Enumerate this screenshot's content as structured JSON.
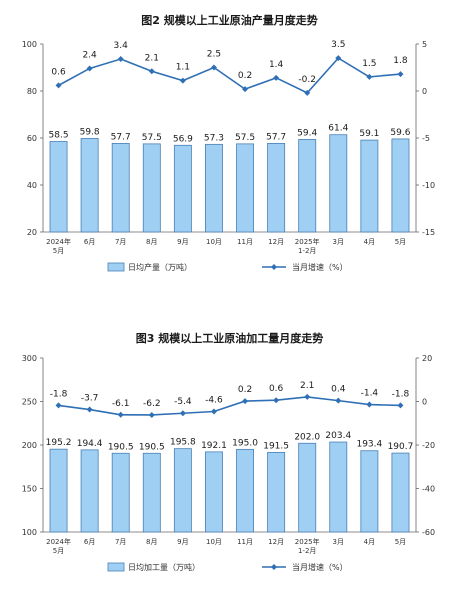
{
  "chart_data": [
    {
      "type": "bar",
      "title": "图2  规模以上工业原油产量月度走势",
      "categories": [
        "2024年\n5月",
        "6月",
        "7月",
        "8月",
        "9月",
        "10月",
        "11月",
        "12月",
        "2025年\n1-2月",
        "3月",
        "4月",
        "5月"
      ],
      "series": [
        {
          "name": "日均产量（万吨）",
          "type": "bar",
          "axis": "left",
          "values": [
            58.5,
            59.8,
            57.7,
            57.5,
            56.9,
            57.3,
            57.5,
            57.7,
            59.4,
            61.4,
            59.1,
            59.6
          ]
        },
        {
          "name": "当月增速（%）",
          "type": "line",
          "axis": "right",
          "values": [
            0.6,
            2.4,
            3.4,
            2.1,
            1.1,
            2.5,
            0.2,
            1.4,
            -0.2,
            3.5,
            1.5,
            1.8
          ]
        }
      ],
      "ylim": [
        20,
        100
      ],
      "yticks": [
        "20",
        "40",
        "60",
        "80",
        "100"
      ],
      "y2lim": [
        -15,
        5
      ],
      "y2ticks": [
        "-15",
        "-10",
        "-5",
        "0",
        "5"
      ],
      "legend": "bottom",
      "colors": {
        "bar_fill": "#9fd0f3",
        "bar_stroke": "#4a7fb5",
        "line": "#2f6fb5"
      }
    },
    {
      "type": "bar",
      "title": "图3  规模以上工业原油加工量月度走势",
      "categories": [
        "2024年\n5月",
        "6月",
        "7月",
        "8月",
        "9月",
        "10月",
        "11月",
        "12月",
        "2025年\n1-2月",
        "3月",
        "4月",
        "5月"
      ],
      "series": [
        {
          "name": "日均加工量（万吨）",
          "type": "bar",
          "axis": "left",
          "values": [
            195.2,
            194.4,
            190.5,
            190.5,
            195.8,
            192.1,
            195.0,
            191.5,
            202.0,
            203.4,
            193.4,
            190.7
          ]
        },
        {
          "name": "当月增速（%）",
          "type": "line",
          "axis": "right",
          "values": [
            -1.8,
            -3.7,
            -6.1,
            -6.2,
            -5.4,
            -4.6,
            0.2,
            0.6,
            2.1,
            0.4,
            -1.4,
            -1.8
          ]
        }
      ],
      "ylim": [
        100,
        300
      ],
      "yticks": [
        "100",
        "150",
        "200",
        "250",
        "300"
      ],
      "y2lim": [
        -60,
        20
      ],
      "y2ticks": [
        "-60",
        "-40",
        "-20",
        "0",
        "20"
      ],
      "legend": "bottom",
      "colors": {
        "bar_fill": "#9fd0f3",
        "bar_stroke": "#4a7fb5",
        "line": "#2f6fb5"
      }
    }
  ]
}
